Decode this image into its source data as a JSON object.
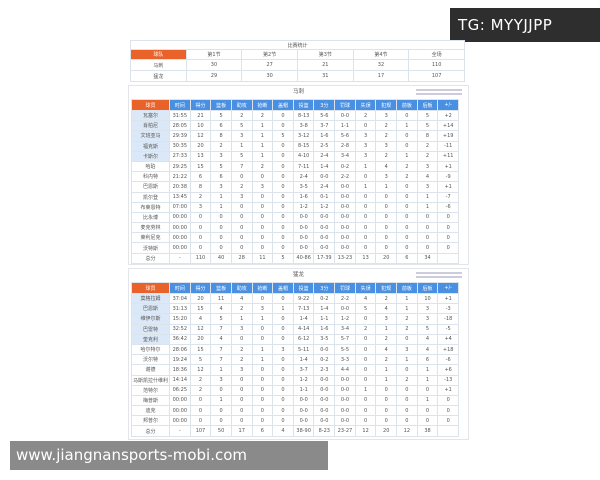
{
  "watermark": "TG: MYYJJPP",
  "site": "www.jiangnansports-mobi.com",
  "summary": {
    "title": "比赛统计",
    "headers": [
      "球队",
      "第1节",
      "第2节",
      "第3节",
      "第4节",
      "全场"
    ],
    "rows": [
      [
        "马刺",
        "30",
        "27",
        "21",
        "32",
        "110"
      ],
      [
        "猛龙",
        "29",
        "30",
        "31",
        "17",
        "107"
      ]
    ]
  },
  "stat_headers": [
    "球员",
    "时间",
    "得分",
    "篮板",
    "助攻",
    "抢断",
    "盖帽",
    "投篮",
    "3分",
    "罚球",
    "失误",
    "犯规",
    "前板",
    "后板",
    "+/-"
  ],
  "teams": [
    {
      "name": "马刺",
      "starters": 5,
      "rows": [
        [
          "瓦塞尔",
          "31:55",
          "21",
          "5",
          "2",
          "2",
          "0",
          "8-13",
          "5-6",
          "0-0",
          "2",
          "3",
          "0",
          "5",
          "+2"
        ],
        [
          "肖柏尼",
          "28:05",
          "10",
          "6",
          "5",
          "1",
          "0",
          "3-8",
          "3-7",
          "1-1",
          "0",
          "2",
          "1",
          "5",
          "+14"
        ],
        [
          "文班亚马",
          "29:39",
          "12",
          "8",
          "3",
          "1",
          "5",
          "3-12",
          "1-6",
          "5-6",
          "3",
          "2",
          "0",
          "8",
          "+19"
        ],
        [
          "福克斯",
          "30:35",
          "20",
          "2",
          "1",
          "1",
          "0",
          "8-15",
          "2-5",
          "2-8",
          "3",
          "3",
          "0",
          "2",
          "-11"
        ],
        [
          "卡斯尔",
          "27:33",
          "13",
          "3",
          "5",
          "1",
          "0",
          "4-10",
          "2-4",
          "3-4",
          "3",
          "2",
          "1",
          "2",
          "+11"
        ],
        [
          "哈珀",
          "29:25",
          "15",
          "5",
          "7",
          "2",
          "0",
          "7-11",
          "1-4",
          "0-2",
          "1",
          "4",
          "2",
          "3",
          "+1"
        ],
        [
          "科内特",
          "21:22",
          "6",
          "6",
          "0",
          "0",
          "0",
          "2-4",
          "0-0",
          "2-2",
          "0",
          "3",
          "2",
          "4",
          "-9"
        ],
        [
          "巴恩斯",
          "20:38",
          "8",
          "3",
          "2",
          "3",
          "0",
          "3-5",
          "2-4",
          "0-0",
          "1",
          "1",
          "0",
          "3",
          "+1"
        ],
        [
          "凯尔登",
          "13:45",
          "2",
          "1",
          "3",
          "0",
          "0",
          "1-6",
          "0-1",
          "0-0",
          "0",
          "0",
          "0",
          "1",
          "-7"
        ],
        [
          "布莱恩特",
          "07:00",
          "3",
          "1",
          "0",
          "0",
          "0",
          "1-2",
          "1-2",
          "0-0",
          "0",
          "0",
          "0",
          "1",
          "-6"
        ],
        [
          "比永博",
          "00:00",
          "0",
          "0",
          "0",
          "0",
          "0",
          "0-0",
          "0-0",
          "0-0",
          "0",
          "0",
          "0",
          "0",
          "0"
        ],
        [
          "麦克劳林",
          "00:00",
          "0",
          "0",
          "0",
          "0",
          "0",
          "0-0",
          "0-0",
          "0-0",
          "0",
          "0",
          "0",
          "0",
          "0"
        ],
        [
          "莱利尼克",
          "00:00",
          "0",
          "0",
          "0",
          "0",
          "0",
          "0-0",
          "0-0",
          "0-0",
          "0",
          "0",
          "0",
          "0",
          "0"
        ],
        [
          "沃特斯",
          "00:00",
          "0",
          "0",
          "0",
          "0",
          "0",
          "0-0",
          "0-0",
          "0-0",
          "0",
          "0",
          "0",
          "0",
          "0"
        ],
        [
          "总分",
          "-",
          "110",
          "40",
          "28",
          "11",
          "5",
          "40-86",
          "17-39",
          "13-23",
          "13",
          "20",
          "6",
          "34",
          ""
        ]
      ]
    },
    {
      "name": "猛龙",
      "starters": 5,
      "rows": [
        [
          "莫格拉姆",
          "37:04",
          "20",
          "11",
          "4",
          "0",
          "0",
          "9-22",
          "0-2",
          "2-2",
          "4",
          "2",
          "1",
          "10",
          "+1"
        ],
        [
          "巴恩斯",
          "31:13",
          "15",
          "4",
          "2",
          "3",
          "1",
          "7-13",
          "1-4",
          "0-0",
          "5",
          "4",
          "1",
          "3",
          "-3"
        ],
        [
          "维伊尔斯",
          "15:20",
          "4",
          "5",
          "1",
          "1",
          "0",
          "1-4",
          "1-1",
          "1-2",
          "0",
          "3",
          "2",
          "3",
          "-18"
        ],
        [
          "巴雷特",
          "32:52",
          "12",
          "7",
          "3",
          "0",
          "0",
          "4-14",
          "1-6",
          "3-4",
          "2",
          "1",
          "2",
          "5",
          "-5"
        ],
        [
          "奎克利",
          "36:42",
          "20",
          "4",
          "0",
          "0",
          "0",
          "6-12",
          "3-5",
          "5-7",
          "0",
          "2",
          "0",
          "4",
          "+4"
        ],
        [
          "哈尔特尔",
          "28:06",
          "15",
          "7",
          "2",
          "1",
          "3",
          "5-11",
          "0-0",
          "5-5",
          "0",
          "4",
          "3",
          "4",
          "+18"
        ],
        [
          "沃尔特",
          "19:24",
          "5",
          "7",
          "2",
          "1",
          "0",
          "1-4",
          "0-2",
          "3-3",
          "0",
          "2",
          "1",
          "6",
          "-6"
        ],
        [
          "谢德",
          "18:36",
          "12",
          "1",
          "3",
          "0",
          "0",
          "3-7",
          "2-3",
          "4-4",
          "0",
          "1",
          "0",
          "1",
          "+6"
        ],
        [
          "马斯凯拉什维利",
          "14:14",
          "2",
          "3",
          "0",
          "0",
          "0",
          "1-2",
          "0-0",
          "0-0",
          "0",
          "1",
          "2",
          "1",
          "-13"
        ],
        [
          "范特尔",
          "06:25",
          "2",
          "0",
          "0",
          "0",
          "0",
          "1-1",
          "0-0",
          "0-0",
          "1",
          "0",
          "0",
          "0",
          "+1"
        ],
        [
          "梅普斯",
          "00:00",
          "0",
          "1",
          "0",
          "0",
          "0",
          "0-0",
          "0-0",
          "0-0",
          "0",
          "0",
          "0",
          "1",
          "0"
        ],
        [
          "迪克",
          "00:00",
          "0",
          "0",
          "0",
          "0",
          "0",
          "0-0",
          "0-0",
          "0-0",
          "0",
          "0",
          "0",
          "0",
          "0"
        ],
        [
          "邦普尔",
          "00:00",
          "0",
          "0",
          "0",
          "0",
          "0",
          "0-0",
          "0-0",
          "0-0",
          "0",
          "0",
          "0",
          "0",
          "0"
        ],
        [
          "总分",
          "-",
          "107",
          "50",
          "17",
          "6",
          "4",
          "38-90",
          "8-23",
          "23-27",
          "12",
          "20",
          "12",
          "38",
          ""
        ]
      ]
    }
  ],
  "colors": {
    "player_header": "#e8622a",
    "stat_header": "#4a90e2",
    "starter_cell": "#dbe8f7"
  }
}
